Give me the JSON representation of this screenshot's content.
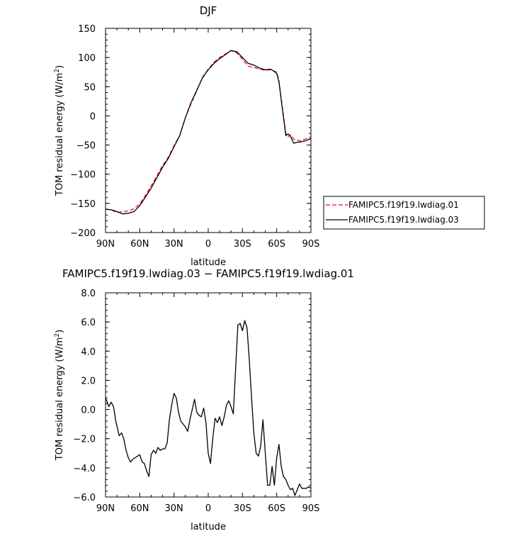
{
  "chart_data": [
    {
      "type": "line",
      "title": "DJF",
      "xlabel": "latitude",
      "ylabel": "TOM residual energy (W/m²)",
      "ylabel_base": "TOM residual energy (W/m",
      "ylabel_sup": "2",
      "ylabel_tail": ")",
      "x_tick_labels": [
        "90N",
        "60N",
        "30N",
        "0",
        "30S",
        "60S",
        "90S"
      ],
      "x_ticks": [
        -90,
        -60,
        -30,
        0,
        30,
        60,
        90
      ],
      "xlim": [
        -90,
        90
      ],
      "y_ticks": [
        150,
        100,
        50,
        0,
        -50,
        -100,
        -150,
        -200
      ],
      "y_tick_labels": [
        "150",
        "100",
        "50",
        "0",
        "−50",
        "−100",
        "−150",
        "−200"
      ],
      "ylim": [
        -200,
        150
      ],
      "legend": "right",
      "series": [
        {
          "name": "FAMIPC5.f19f19.lwdiag.01",
          "color": "#e8141c",
          "dash": "dashed",
          "x": [
            -90,
            -85,
            -80,
            -75,
            -70,
            -65,
            -60,
            -55,
            -50,
            -45,
            -40,
            -35,
            -30,
            -25,
            -20,
            -15,
            -10,
            -5,
            0,
            5,
            10,
            15,
            20,
            25,
            30,
            35,
            40,
            45,
            50,
            55,
            60,
            62,
            65,
            68,
            70,
            72,
            75,
            78,
            80,
            85,
            90
          ],
          "y": [
            -160,
            -161,
            -166,
            -164,
            -163,
            -159,
            -151,
            -136,
            -120,
            -103,
            -85,
            -71,
            -51,
            -34,
            -3,
            21,
            43,
            66,
            80,
            92,
            100,
            106,
            112,
            108,
            97,
            85,
            83,
            80,
            78,
            79,
            75,
            60,
            15,
            -30,
            -36,
            -32,
            -40,
            -41,
            -43,
            -40,
            -36
          ]
        },
        {
          "name": "FAMIPC5.f19f19.lwdiag.03",
          "color": "#000000",
          "dash": "solid",
          "x": [
            -90,
            -85,
            -80,
            -75,
            -70,
            -65,
            -60,
            -55,
            -50,
            -45,
            -40,
            -35,
            -30,
            -25,
            -20,
            -15,
            -10,
            -5,
            0,
            5,
            10,
            15,
            20,
            25,
            30,
            35,
            40,
            45,
            50,
            55,
            60,
            62,
            65,
            68,
            70,
            72,
            75,
            78,
            80,
            85,
            90
          ],
          "y": [
            -160,
            -161,
            -164,
            -168,
            -167,
            -164,
            -154,
            -139,
            -124,
            -106,
            -88,
            -73,
            -53,
            -34,
            -3,
            23,
            44,
            65,
            79,
            90,
            98,
            105,
            112,
            110,
            100,
            90,
            87,
            82,
            79,
            80,
            73,
            58,
            12,
            -34,
            -31,
            -35,
            -47,
            -45,
            -45,
            -43,
            -39
          ]
        }
      ]
    },
    {
      "type": "line",
      "title": "FAMIPC5.f19f19.lwdiag.03 − FAMIPC5.f19f19.lwdiag.01",
      "xlabel": "latitude",
      "ylabel": "TOM residual energy (W/m²)",
      "ylabel_base": "TOM residual energy (W/m",
      "ylabel_sup": "2",
      "ylabel_tail": ")",
      "x_tick_labels": [
        "90N",
        "60N",
        "30N",
        "0",
        "30S",
        "60S",
        "90S"
      ],
      "x_ticks": [
        -90,
        -60,
        -30,
        0,
        30,
        60,
        90
      ],
      "xlim": [
        -90,
        90
      ],
      "y_ticks": [
        8,
        6,
        4,
        2,
        0,
        -2,
        -4,
        -6
      ],
      "y_tick_labels": [
        "8.0",
        "6.0",
        "4.0",
        "2.0",
        "0.0",
        "−2.0",
        "−4.0",
        "−6.0"
      ],
      "ylim": [
        -6,
        8
      ],
      "series": [
        {
          "name": "",
          "color": "#000000",
          "dash": "solid",
          "x": [
            -90,
            -87,
            -85,
            -83,
            -81,
            -78,
            -76,
            -74,
            -72,
            -70,
            -68,
            -66,
            -64,
            -62,
            -60,
            -58,
            -56,
            -54,
            -52,
            -50,
            -48,
            -46,
            -44,
            -42,
            -40,
            -38,
            -36,
            -34,
            -32,
            -30,
            -28,
            -26,
            -24,
            -22,
            -20,
            -18,
            -16,
            -14,
            -12,
            -10,
            -8,
            -6,
            -4,
            -2,
            0,
            2,
            4,
            6,
            8,
            10,
            12,
            14,
            16,
            18,
            20,
            22,
            24,
            26,
            28,
            30,
            32,
            34,
            36,
            38,
            40,
            42,
            44,
            46,
            48,
            50,
            52,
            54,
            56,
            58,
            60,
            62,
            64,
            66,
            68,
            70,
            72,
            74,
            76,
            78,
            80,
            82,
            84,
            86,
            88,
            90
          ],
          "y": [
            0.8,
            0.2,
            0.5,
            0.2,
            -0.8,
            -1.8,
            -1.6,
            -2.0,
            -2.8,
            -3.3,
            -3.6,
            -3.4,
            -3.3,
            -3.2,
            -3.1,
            -3.6,
            -3.7,
            -4.2,
            -4.6,
            -3.1,
            -2.8,
            -3.0,
            -2.6,
            -2.8,
            -2.7,
            -2.7,
            -2.3,
            -0.7,
            0.3,
            1.1,
            0.8,
            -0.2,
            -0.8,
            -1.0,
            -1.2,
            -1.5,
            -0.7,
            0.0,
            0.7,
            -0.2,
            -0.4,
            -0.5,
            0.1,
            -0.9,
            -3.0,
            -3.7,
            -2.0,
            -0.6,
            -0.9,
            -0.5,
            -1.1,
            -0.5,
            0.3,
            0.6,
            0.2,
            -0.3,
            2.8,
            5.8,
            5.9,
            5.4,
            6.1,
            5.6,
            3.4,
            0.8,
            -1.6,
            -3.0,
            -3.2,
            -2.5,
            -0.7,
            -3.0,
            -5.2,
            -5.2,
            -3.9,
            -5.2,
            -3.3,
            -2.4,
            -3.9,
            -4.6,
            -4.8,
            -5.2,
            -5.5,
            -5.4,
            -5.9,
            -5.5,
            -5.1,
            -5.4,
            -5.4,
            -5.4,
            -5.3,
            -5.4
          ]
        }
      ]
    }
  ]
}
